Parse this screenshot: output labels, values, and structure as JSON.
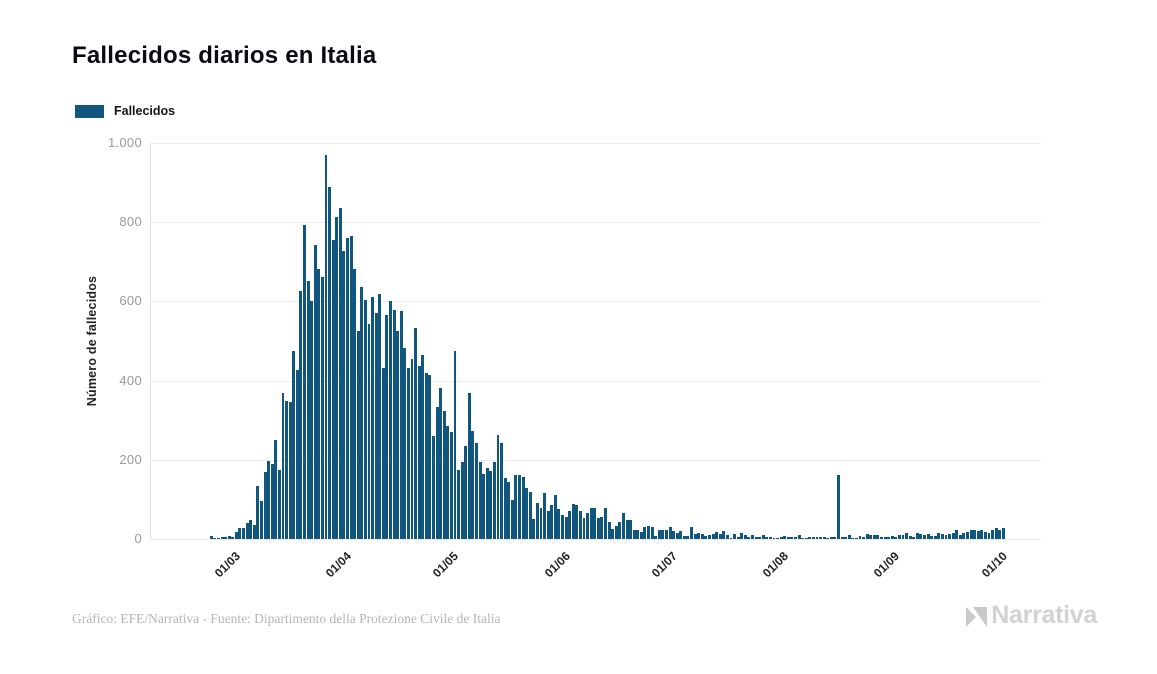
{
  "header": {
    "title": "Fallecidos diarios en Italia"
  },
  "legend": {
    "label": "Fallecidos",
    "color": "#11567e"
  },
  "axes": {
    "y_title": "Número de fallecidos",
    "y_ticks": [
      {
        "value": 0,
        "label": "0"
      },
      {
        "value": 200,
        "label": "200"
      },
      {
        "value": 400,
        "label": "400"
      },
      {
        "value": 600,
        "label": "600"
      },
      {
        "value": 800,
        "label": "800"
      },
      {
        "value": 1000,
        "label": "1.000"
      }
    ],
    "x_tick_labels": [
      "01/03",
      "01/04",
      "01/05",
      "01/06",
      "01/07",
      "01/08",
      "01/09",
      "01/10"
    ]
  },
  "footer": {
    "caption": "Gráfico: EFE/Narrativa - Fuente: Dipartimento della Protezione Civile de Italia",
    "logo_text": "Narrativa"
  },
  "colors": {
    "bar": "#11567e",
    "grid": "#ececec",
    "axis": "#d9d9d9",
    "y_tick_text": "#9a9a9a",
    "x_tick_text": "#1f1f1f",
    "title_text": "#0b0b15",
    "footer_text": "#b5b5b5",
    "logo_text": "#d2d2d2"
  },
  "chart_data": {
    "type": "bar",
    "title": "Fallecidos diarios en Italia",
    "series_name": "Fallecidos",
    "xlabel": "",
    "ylabel": "Número de fallecidos",
    "ylim": [
      0,
      1000
    ],
    "grid": "horizontal",
    "legend_position": "top-left",
    "x": [
      "24/02",
      "25/02",
      "26/02",
      "27/02",
      "28/02",
      "29/02",
      "01/03",
      "02/03",
      "03/03",
      "04/03",
      "05/03",
      "06/03",
      "07/03",
      "08/03",
      "09/03",
      "10/03",
      "11/03",
      "12/03",
      "13/03",
      "14/03",
      "15/03",
      "16/03",
      "17/03",
      "18/03",
      "19/03",
      "20/03",
      "21/03",
      "22/03",
      "23/03",
      "24/03",
      "25/03",
      "26/03",
      "27/03",
      "28/03",
      "29/03",
      "30/03",
      "31/03",
      "01/04",
      "02/04",
      "03/04",
      "04/04",
      "05/04",
      "06/04",
      "07/04",
      "08/04",
      "09/04",
      "10/04",
      "11/04",
      "12/04",
      "13/04",
      "14/04",
      "15/04",
      "16/04",
      "17/04",
      "18/04",
      "19/04",
      "20/04",
      "21/04",
      "22/04",
      "23/04",
      "24/04",
      "25/04",
      "26/04",
      "27/04",
      "28/04",
      "29/04",
      "30/04",
      "01/05",
      "02/05",
      "03/05",
      "04/05",
      "05/05",
      "06/05",
      "07/05",
      "08/05",
      "09/05",
      "10/05",
      "11/05",
      "12/05",
      "13/05",
      "14/05",
      "15/05",
      "16/05",
      "17/05",
      "18/05",
      "19/05",
      "20/05",
      "21/05",
      "22/05",
      "23/05",
      "24/05",
      "25/05",
      "26/05",
      "27/05",
      "28/05",
      "29/05",
      "30/05",
      "31/05",
      "01/06",
      "02/06",
      "03/06",
      "04/06",
      "05/06",
      "06/06",
      "07/06",
      "08/06",
      "09/06",
      "10/06",
      "11/06",
      "12/06",
      "13/06",
      "14/06",
      "15/06",
      "16/06",
      "17/06",
      "18/06",
      "19/06",
      "20/06",
      "21/06",
      "22/06",
      "23/06",
      "24/06",
      "25/06",
      "26/06",
      "27/06",
      "28/06",
      "29/06",
      "30/06",
      "01/07",
      "02/07",
      "03/07",
      "04/07",
      "05/07",
      "06/07",
      "07/07",
      "08/07",
      "09/07",
      "10/07",
      "11/07",
      "12/07",
      "13/07",
      "14/07",
      "15/07",
      "16/07",
      "17/07",
      "18/07",
      "19/07",
      "20/07",
      "21/07",
      "22/07",
      "23/07",
      "24/07",
      "25/07",
      "26/07",
      "27/07",
      "28/07",
      "29/07",
      "30/07",
      "31/07",
      "01/08",
      "02/08",
      "03/08",
      "04/08",
      "05/08",
      "06/08",
      "07/08",
      "08/08",
      "09/08",
      "10/08",
      "11/08",
      "12/08",
      "13/08",
      "14/08",
      "15/08",
      "16/08",
      "17/08",
      "18/08",
      "19/08",
      "20/08",
      "21/08",
      "22/08",
      "23/08",
      "24/08",
      "25/08",
      "26/08",
      "27/08",
      "28/08",
      "29/08",
      "30/08",
      "31/08",
      "01/09",
      "02/09",
      "03/09",
      "04/09",
      "05/09",
      "06/09",
      "07/09",
      "08/09",
      "09/09",
      "10/09",
      "11/09",
      "12/09",
      "13/09",
      "14/09",
      "15/09",
      "16/09",
      "17/09",
      "18/09",
      "19/09",
      "20/09",
      "21/09",
      "22/09",
      "23/09",
      "24/09",
      "25/09",
      "26/09",
      "27/09",
      "28/09",
      "29/09",
      "30/09",
      "01/10",
      "02/10"
    ],
    "values": [
      7,
      3,
      2,
      5,
      4,
      8,
      5,
      18,
      27,
      28,
      41,
      49,
      36,
      133,
      97,
      168,
      196,
      189,
      250,
      175,
      368,
      349,
      345,
      475,
      427,
      627,
      793,
      651,
      601,
      743,
      683,
      662,
      969,
      889,
      756,
      812,
      837,
      727,
      760,
      766,
      681,
      525,
      636,
      604,
      542,
      610,
      570,
      619,
      431,
      566,
      602,
      578,
      525,
      575,
      482,
      433,
      454,
      534,
      437,
      464,
      420,
      415,
      260,
      333,
      382,
      323,
      285,
      269,
      474,
      174,
      195,
      236,
      369,
      274,
      243,
      194,
      165,
      179,
      172,
      195,
      262,
      242,
      153,
      145,
      99,
      162,
      161,
      156,
      130,
      119,
      50,
      92,
      78,
      117,
      70,
      87,
      111,
      75,
      60,
      55,
      71,
      88,
      85,
      72,
      53,
      65,
      79,
      79,
      53,
      56,
      78,
      44,
      26,
      34,
      43,
      66,
      47,
      49,
      24,
      23,
      18,
      30,
      34,
      30,
      8,
      22,
      23,
      23,
      30,
      21,
      15,
      21,
      8,
      8,
      30,
      12,
      14,
      12,
      7,
      9,
      13,
      17,
      13,
      20,
      11,
      3,
      13,
      5,
      15,
      10,
      6,
      10,
      5,
      5,
      11,
      5,
      6,
      3,
      3,
      5,
      8,
      5,
      4,
      6,
      10,
      3,
      2,
      6,
      4,
      6,
      6,
      5,
      3,
      4,
      4,
      162,
      5,
      6,
      9,
      3,
      3,
      7,
      4,
      13,
      10,
      9,
      9,
      6,
      4,
      4,
      8,
      6,
      10,
      10,
      16,
      8,
      6,
      14,
      13,
      10,
      12,
      7,
      7,
      14,
      12,
      10,
      13,
      15,
      24,
      11,
      14,
      17,
      22,
      24,
      20,
      24,
      17,
      16,
      23,
      29,
      23,
      29
    ]
  }
}
